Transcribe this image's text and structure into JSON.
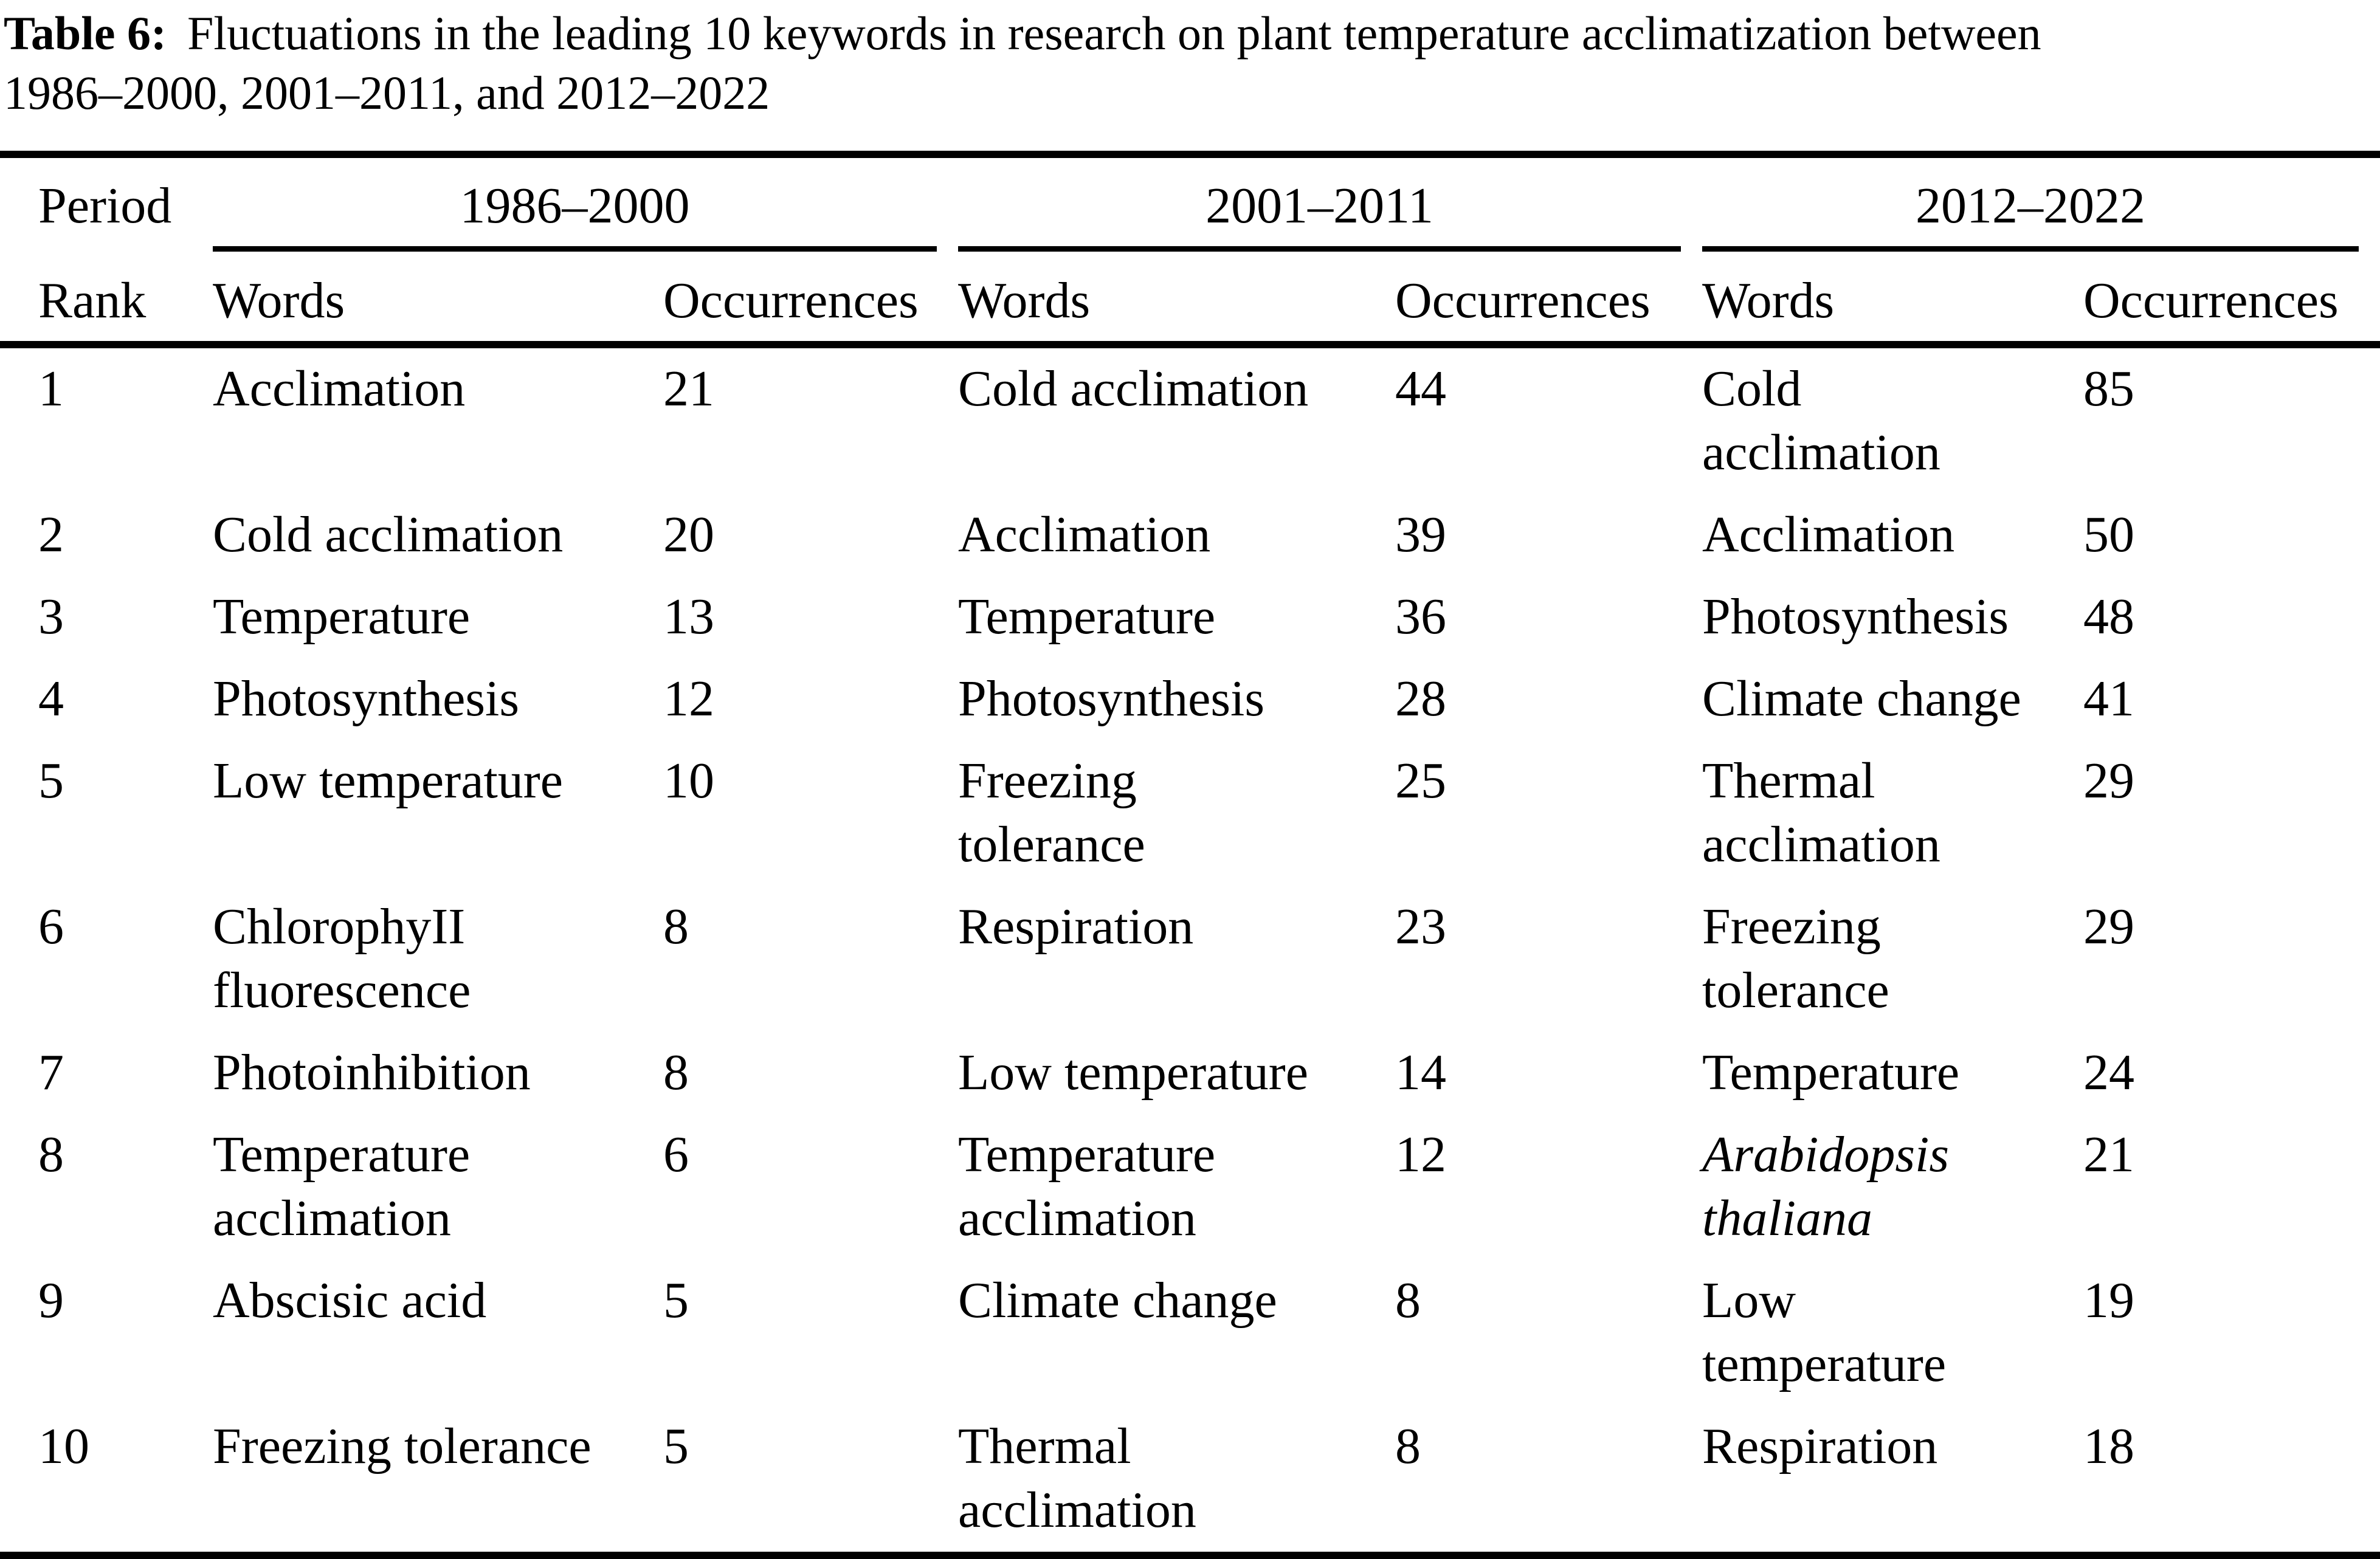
{
  "title": {
    "label": "Table 6:",
    "text": "Fluctuations in the leading 10 keywords in research on plant temperature acclimatization between\n1986–2000, 2001–2011, and 2012–2022"
  },
  "table": {
    "period_label": "Period",
    "rank_label": "Rank",
    "groups": [
      {
        "period": "1986–2000",
        "words_label": "Words",
        "occurrences_label": "Occurrences"
      },
      {
        "period": "2001–2011",
        "words_label": "Words",
        "occurrences_label": "Occurrences"
      },
      {
        "period": "2012–2022",
        "words_label": "Words",
        "occurrences_label": "Occurrences"
      }
    ],
    "rows": [
      {
        "rank": "1",
        "cells": [
          {
            "words": "Acclimation",
            "occ": "21"
          },
          {
            "words": "Cold acclimation",
            "occ": "44"
          },
          {
            "words": "Cold\nacclimation",
            "occ": "85"
          }
        ]
      },
      {
        "rank": "2",
        "cells": [
          {
            "words": "Cold acclimation",
            "occ": "20"
          },
          {
            "words": "Acclimation",
            "occ": "39"
          },
          {
            "words": "Acclimation",
            "occ": "50"
          }
        ]
      },
      {
        "rank": "3",
        "cells": [
          {
            "words": "Temperature",
            "occ": "13"
          },
          {
            "words": "Temperature",
            "occ": "36"
          },
          {
            "words": "Photosynthesis",
            "occ": "48"
          }
        ]
      },
      {
        "rank": "4",
        "cells": [
          {
            "words": "Photosynthesis",
            "occ": "12"
          },
          {
            "words": "Photosynthesis",
            "occ": "28"
          },
          {
            "words": "Climate change",
            "occ": "41"
          }
        ]
      },
      {
        "rank": "5",
        "cells": [
          {
            "words": "Low temperature",
            "occ": "10"
          },
          {
            "words": "Freezing\ntolerance",
            "occ": "25"
          },
          {
            "words": "Thermal\nacclimation",
            "occ": "29"
          }
        ]
      },
      {
        "rank": "6",
        "cells": [
          {
            "words": "ChlorophyII\nfluorescence",
            "occ": "8"
          },
          {
            "words": "Respiration",
            "occ": "23"
          },
          {
            "words": "Freezing\ntolerance",
            "occ": "29"
          }
        ]
      },
      {
        "rank": "7",
        "cells": [
          {
            "words": "Photoinhibition",
            "occ": "8"
          },
          {
            "words": "Low temperature",
            "occ": "14"
          },
          {
            "words": "Temperature",
            "occ": "24"
          }
        ]
      },
      {
        "rank": "8",
        "cells": [
          {
            "words": "Temperature\nacclimation",
            "occ": "6"
          },
          {
            "words": "Temperature\nacclimation",
            "occ": "12"
          },
          {
            "words": "Arabidopsis\nthaliana",
            "occ": "21",
            "italic": true
          }
        ]
      },
      {
        "rank": "9",
        "cells": [
          {
            "words": "Abscisic acid",
            "occ": "5"
          },
          {
            "words": "Climate change",
            "occ": "8"
          },
          {
            "words": "Low\ntemperature",
            "occ": "19"
          }
        ]
      },
      {
        "rank": "10",
        "cells": [
          {
            "words": "Freezing tolerance",
            "occ": "5"
          },
          {
            "words": "Thermal\nacclimation",
            "occ": "8"
          },
          {
            "words": "Respiration",
            "occ": "18"
          }
        ]
      }
    ]
  }
}
